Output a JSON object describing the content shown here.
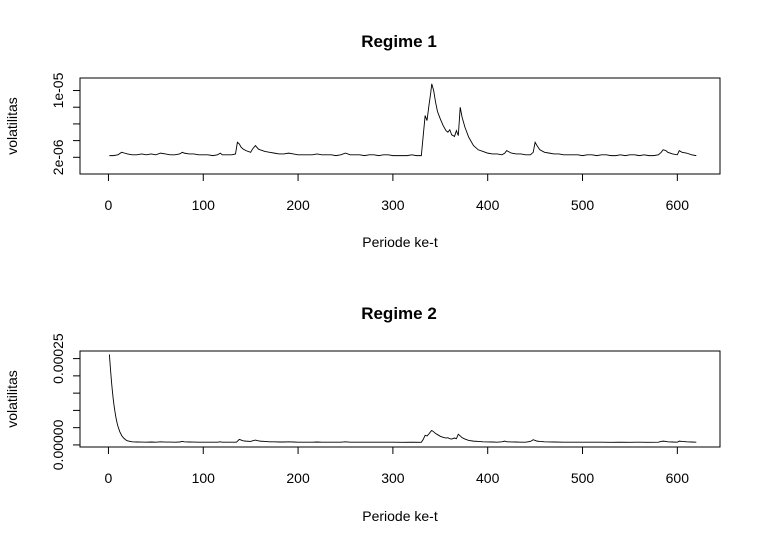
{
  "chart_data": [
    {
      "type": "line",
      "title": "Regime 1",
      "xlabel": "Periode ke-t",
      "ylabel": "volatilitas",
      "xlim": [
        -30,
        645
      ],
      "ylim": [
        0,
        1.15e-05
      ],
      "x_ticks": [
        0,
        100,
        200,
        300,
        400,
        500,
        600
      ],
      "x_tick_labels": [
        "0",
        "100",
        "200",
        "300",
        "400",
        "500",
        "600"
      ],
      "y_ticks": [
        2e-06,
        4e-06,
        6e-06,
        8e-06,
        1e-05
      ],
      "y_tick_labels": [
        "2e-06",
        "",
        "",
        "",
        "1e-05"
      ],
      "grid": false,
      "series": [
        {
          "x": [
            1,
            5,
            10,
            14,
            17,
            20,
            25,
            30,
            35,
            40,
            45,
            50,
            55,
            60,
            65,
            70,
            75,
            78,
            80,
            85,
            90,
            95,
            100,
            105,
            110,
            115,
            118,
            120,
            125,
            130,
            134,
            136,
            138,
            140,
            142,
            145,
            150,
            152,
            155,
            158,
            160,
            165,
            170,
            175,
            180,
            185,
            190,
            195,
            200,
            205,
            210,
            215,
            220,
            225,
            230,
            235,
            240,
            245,
            250,
            255,
            260,
            265,
            270,
            275,
            280,
            285,
            290,
            295,
            300,
            305,
            310,
            315,
            320,
            325,
            330,
            332,
            334,
            336,
            338,
            340,
            341,
            343,
            345,
            347,
            350,
            353,
            356,
            358,
            360,
            362,
            365,
            367,
            369,
            371,
            373,
            376,
            380,
            385,
            390,
            395,
            400,
            405,
            410,
            415,
            418,
            420,
            425,
            430,
            435,
            440,
            445,
            448,
            450,
            452,
            455,
            460,
            465,
            470,
            475,
            480,
            485,
            490,
            495,
            500,
            505,
            510,
            515,
            520,
            525,
            530,
            535,
            540,
            545,
            550,
            555,
            560,
            565,
            570,
            575,
            580,
            583,
            585,
            588,
            590,
            595,
            600,
            602,
            605,
            610,
            615,
            620
          ],
          "y": [
            2.2e-06,
            2.2e-06,
            2.3e-06,
            2.6e-06,
            2.5e-06,
            2.4e-06,
            2.3e-06,
            2.3e-06,
            2.4e-06,
            2.3e-06,
            2.4e-06,
            2.3e-06,
            2.5e-06,
            2.4e-06,
            2.3e-06,
            2.3e-06,
            2.4e-06,
            2.6e-06,
            2.5e-06,
            2.4e-06,
            2.4e-06,
            2.3e-06,
            2.3e-06,
            2.3e-06,
            2.2e-06,
            2.3e-06,
            2.5e-06,
            2.3e-06,
            2.3e-06,
            2.3e-06,
            2.4e-06,
            3.8e-06,
            3.6e-06,
            3.2e-06,
            3e-06,
            2.8e-06,
            2.6e-06,
            3e-06,
            3.4e-06,
            3e-06,
            2.9e-06,
            2.7e-06,
            2.6e-06,
            2.5e-06,
            2.4e-06,
            2.4e-06,
            2.5e-06,
            2.4e-06,
            2.3e-06,
            2.3e-06,
            2.3e-06,
            2.3e-06,
            2.4e-06,
            2.3e-06,
            2.3e-06,
            2.3e-06,
            2.2e-06,
            2.3e-06,
            2.5e-06,
            2.3e-06,
            2.3e-06,
            2.3e-06,
            2.2e-06,
            2.3e-06,
            2.3e-06,
            2.2e-06,
            2.3e-06,
            2.3e-06,
            2.2e-06,
            2.2e-06,
            2.2e-06,
            2.2e-06,
            2.3e-06,
            2.2e-06,
            2.2e-06,
            4.6e-06,
            7e-06,
            6.4e-06,
            8.2e-06,
            9.8e-06,
            1.08e-05,
            1e-05,
            8.6e-06,
            7.5e-06,
            6.6e-06,
            5.8e-06,
            5.2e-06,
            5e-06,
            5.3e-06,
            4.7e-06,
            4.5e-06,
            5.2e-06,
            4.6e-06,
            8e-06,
            6.8e-06,
            5.6e-06,
            4.4e-06,
            3.4e-06,
            2.9e-06,
            2.7e-06,
            2.5e-06,
            2.4e-06,
            2.4e-06,
            2.3e-06,
            2.5e-06,
            2.8e-06,
            2.5e-06,
            2.4e-06,
            2.4e-06,
            2.3e-06,
            2.3e-06,
            2.6e-06,
            3.8e-06,
            3.4e-06,
            2.9e-06,
            2.6e-06,
            2.5e-06,
            2.4e-06,
            2.4e-06,
            2.3e-06,
            2.3e-06,
            2.3e-06,
            2.3e-06,
            2.2e-06,
            2.3e-06,
            2.3e-06,
            2.2e-06,
            2.3e-06,
            2.3e-06,
            2.2e-06,
            2.2e-06,
            2.3e-06,
            2.2e-06,
            2.3e-06,
            2.3e-06,
            2.2e-06,
            2.3e-06,
            2.2e-06,
            2.2e-06,
            2.3e-06,
            2.6e-06,
            2.9e-06,
            2.8e-06,
            2.6e-06,
            2.4e-06,
            2.3e-06,
            2.8e-06,
            2.6e-06,
            2.5e-06,
            2.3e-06,
            2.2e-06
          ]
        }
      ]
    },
    {
      "type": "line",
      "title": "Regime 2",
      "xlabel": "Periode ke-t",
      "ylabel": "volatilitas",
      "xlim": [
        -30,
        645
      ],
      "ylim": [
        -6e-06,
        0.000272
      ],
      "x_ticks": [
        0,
        100,
        200,
        300,
        400,
        500,
        600
      ],
      "x_tick_labels": [
        "0",
        "100",
        "200",
        "300",
        "400",
        "500",
        "600"
      ],
      "y_ticks": [
        0,
        5e-05,
        0.0001,
        0.00015,
        0.0002,
        0.00025
      ],
      "y_tick_labels": [
        "0.00000",
        "",
        "",
        "",
        "",
        "0.00025"
      ],
      "grid": false,
      "series": [
        {
          "x": [
            1,
            2,
            3,
            4,
            5,
            6,
            7,
            8,
            9,
            10,
            12,
            14,
            16,
            18,
            20,
            25,
            30,
            35,
            40,
            45,
            50,
            55,
            60,
            65,
            70,
            75,
            78,
            80,
            85,
            90,
            95,
            100,
            105,
            110,
            115,
            118,
            120,
            125,
            130,
            135,
            138,
            140,
            142,
            145,
            150,
            152,
            155,
            158,
            160,
            165,
            170,
            175,
            180,
            185,
            190,
            195,
            200,
            205,
            210,
            215,
            220,
            225,
            230,
            235,
            240,
            245,
            250,
            255,
            260,
            270,
            280,
            290,
            300,
            310,
            320,
            330,
            332,
            334,
            336,
            338,
            340,
            341,
            343,
            345,
            347,
            350,
            353,
            356,
            358,
            360,
            362,
            365,
            367,
            369,
            371,
            373,
            376,
            380,
            385,
            390,
            395,
            400,
            405,
            410,
            415,
            418,
            420,
            425,
            430,
            435,
            440,
            445,
            448,
            450,
            452,
            455,
            460,
            465,
            470,
            480,
            490,
            500,
            510,
            520,
            530,
            540,
            550,
            560,
            570,
            580,
            583,
            585,
            588,
            590,
            595,
            600,
            602,
            605,
            610,
            615,
            620
          ],
          "y": [
            0.000262,
            0.000225,
            0.00019,
            0.00016,
            0.000134,
            0.000112,
            9.4e-05,
            7.8e-05,
            6.5e-05,
            5.4e-05,
            3.8e-05,
            2.7e-05,
            2e-05,
            1.5e-05,
            1.2e-05,
            9e-06,
            8.5e-06,
            8.2e-06,
            8e-06,
            8.5e-06,
            8e-06,
            9e-06,
            8.2e-06,
            8.2e-06,
            8e-06,
            8.5e-06,
            1e-05,
            9e-06,
            8.5e-06,
            8.2e-06,
            8e-06,
            8e-06,
            8e-06,
            7.8e-06,
            8e-06,
            9e-06,
            8e-06,
            8e-06,
            8e-06,
            8e-06,
            1.6e-05,
            1.4e-05,
            1.2e-05,
            1.1e-05,
            1e-05,
            1.2e-05,
            1.4e-05,
            1.2e-05,
            1.1e-05,
            1e-05,
            9e-06,
            9e-06,
            8.5e-06,
            8.5e-06,
            9e-06,
            8.5e-06,
            8e-06,
            8e-06,
            8e-06,
            8e-06,
            8.5e-06,
            8e-06,
            8e-06,
            8e-06,
            7.8e-06,
            8e-06,
            9e-06,
            8e-06,
            8e-06,
            7.8e-06,
            8e-06,
            7.8e-06,
            7.8e-06,
            7.6e-06,
            8e-06,
            7.6e-06,
            1.6e-05,
            2.8e-05,
            2.6e-05,
            3.2e-05,
            3.9e-05,
            4.2e-05,
            3.8e-05,
            3.3e-05,
            3e-05,
            2.5e-05,
            2.2e-05,
            2e-05,
            2.1e-05,
            1.8e-05,
            1.7e-05,
            2e-05,
            1.8e-05,
            3.1e-05,
            2.6e-05,
            2.1e-05,
            1.7e-05,
            1.3e-05,
            1.1e-05,
            1e-05,
            9e-06,
            8.8e-06,
            8.5e-06,
            8e-06,
            9e-06,
            1.1e-05,
            9e-06,
            8.8e-06,
            8.5e-06,
            8e-06,
            8e-06,
            1e-05,
            1.5e-05,
            1.3e-05,
            1.1e-05,
            1e-05,
            9e-06,
            8.8e-06,
            8.5e-06,
            8e-06,
            8e-06,
            7.8e-06,
            7.8e-06,
            8e-06,
            7.6e-06,
            8e-06,
            7.6e-06,
            8e-06,
            7.6e-06,
            8e-06,
            1e-05,
            1.1e-05,
            1e-05,
            9e-06,
            8.5e-06,
            8e-06,
            1.1e-05,
            1e-05,
            9e-06,
            8.5e-06,
            8e-06
          ]
        }
      ]
    }
  ]
}
